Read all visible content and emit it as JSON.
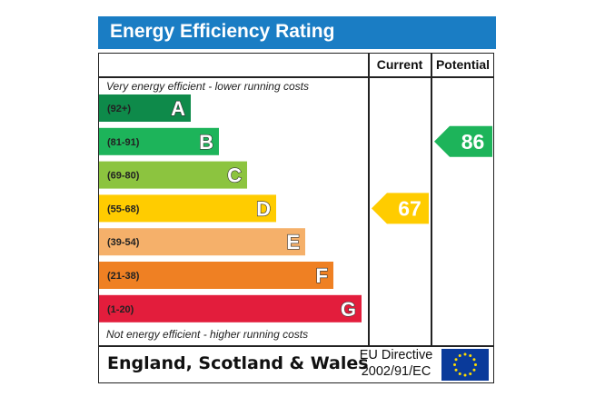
{
  "title": "Energy Efficiency Rating",
  "columns": {
    "current": "Current",
    "potential": "Potential"
  },
  "top_note": "Very energy efficient - lower running costs",
  "bottom_note": "Not energy efficient - higher running costs",
  "footer": {
    "region": "England, Scotland & Wales",
    "directive_line1": "EU Directive",
    "directive_line2": "2002/91/EC"
  },
  "chart_data": {
    "type": "bar",
    "categories": [
      "A",
      "B",
      "C",
      "D",
      "E",
      "F",
      "G"
    ],
    "ranges": [
      "(92+)",
      "(81-91)",
      "(69-80)",
      "(55-68)",
      "(39-54)",
      "(21-38)",
      "(1-20)"
    ],
    "colors": [
      "#0e8a4a",
      "#1db45a",
      "#8cc43f",
      "#ffcc00",
      "#f5b06a",
      "#ef8023",
      "#e31d3c"
    ],
    "current": {
      "value": 67,
      "band": "D",
      "color": "#ffcc00"
    },
    "potential": {
      "value": 86,
      "band": "B",
      "color": "#1db45a"
    }
  }
}
